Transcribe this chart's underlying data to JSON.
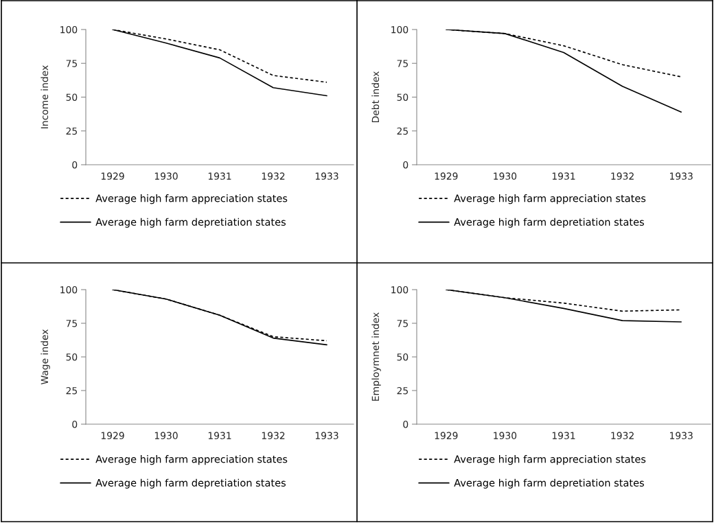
{
  "chart_data": [
    {
      "type": "line",
      "ylabel": "Income index",
      "categories": [
        "1929",
        "1930",
        "1931",
        "1932",
        "1933"
      ],
      "ylim": [
        0,
        100
      ],
      "yticks": [
        0,
        25,
        50,
        75,
        100
      ],
      "grid": false,
      "legend": "bottom",
      "marker": "none",
      "series": [
        {
          "name": "Average high farm appreciation states",
          "color": "#000000",
          "line_style": "dashed",
          "values": [
            100,
            93,
            85,
            66,
            61
          ]
        },
        {
          "name": "Average high farm depretiation states",
          "color": "#000000",
          "line_style": "solid",
          "values": [
            100,
            90,
            79,
            57,
            51
          ]
        }
      ]
    },
    {
      "type": "line",
      "ylabel": "Debt index",
      "categories": [
        "1929",
        "1930",
        "1931",
        "1932",
        "1933"
      ],
      "ylim": [
        0,
        100
      ],
      "yticks": [
        0,
        25,
        50,
        75,
        100
      ],
      "grid": false,
      "legend": "bottom",
      "marker": "none",
      "series": [
        {
          "name": "Average high farm appreciation states",
          "color": "#000000",
          "line_style": "dashed",
          "values": [
            100,
            97,
            88,
            74,
            65
          ]
        },
        {
          "name": "Average high farm depretiation states",
          "color": "#000000",
          "line_style": "solid",
          "values": [
            100,
            97,
            83,
            58,
            39
          ]
        }
      ]
    },
    {
      "type": "line",
      "ylabel": "Wage index",
      "categories": [
        "1929",
        "1930",
        "1931",
        "1932",
        "1933"
      ],
      "ylim": [
        0,
        100
      ],
      "yticks": [
        0,
        25,
        50,
        75,
        100
      ],
      "grid": false,
      "legend": "bottom",
      "marker": "none",
      "series": [
        {
          "name": "Average high farm appreciation states",
          "color": "#000000",
          "line_style": "dashed",
          "values": [
            100,
            93,
            81,
            65,
            62
          ]
        },
        {
          "name": "Average high farm depretiation states",
          "color": "#000000",
          "line_style": "solid",
          "values": [
            100,
            93,
            81,
            64,
            59
          ]
        }
      ]
    },
    {
      "type": "line",
      "ylabel": "Employmnet index",
      "categories": [
        "1929",
        "1930",
        "1931",
        "1932",
        "1933"
      ],
      "ylim": [
        0,
        100
      ],
      "yticks": [
        0,
        25,
        50,
        75,
        100
      ],
      "grid": false,
      "legend": "bottom",
      "marker": "none",
      "series": [
        {
          "name": "Average high farm appreciation states",
          "color": "#000000",
          "line_style": "dashed",
          "values": [
            100,
            94,
            90,
            84,
            85
          ]
        },
        {
          "name": "Average high farm depretiation states",
          "color": "#000000",
          "line_style": "solid",
          "values": [
            100,
            94,
            86,
            77,
            76
          ]
        }
      ]
    }
  ]
}
